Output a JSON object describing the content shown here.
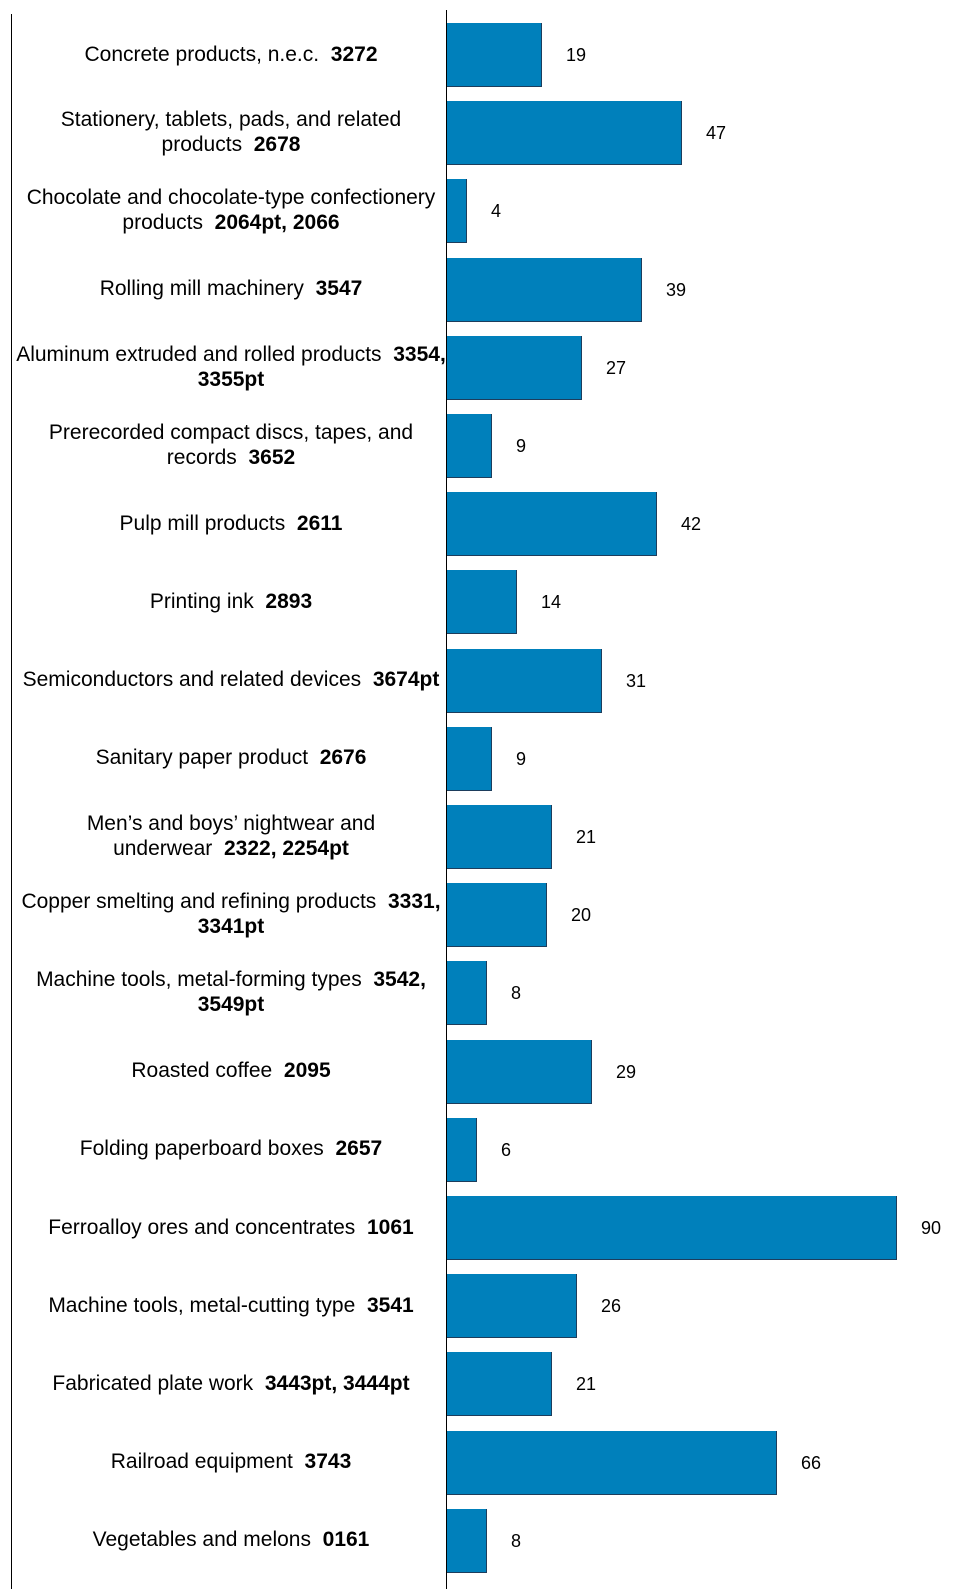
{
  "chart_data": {
    "type": "bar",
    "orientation": "horizontal",
    "title": "",
    "xlabel": "",
    "ylabel": "",
    "xlim": [
      0,
      90
    ],
    "grid": false,
    "bar_color": "#0080bb",
    "categories": [
      {
        "name": "Concrete products, n.e.c.",
        "code": "3272",
        "value": 19
      },
      {
        "name": "Stationery, tablets, pads, and related products",
        "code": "2678",
        "value": 47
      },
      {
        "name": "Chocolate and chocolate-type confectionery products",
        "code": "2064pt, 2066",
        "value": 4
      },
      {
        "name": "Rolling mill machinery",
        "code": "3547",
        "value": 39
      },
      {
        "name": "Aluminum extruded and rolled products",
        "code": "3354, 3355pt",
        "value": 27
      },
      {
        "name": "Prerecorded compact discs, tapes, and records",
        "code": "3652",
        "value": 9
      },
      {
        "name": "Pulp mill products",
        "code": "2611",
        "value": 42
      },
      {
        "name": "Printing ink",
        "code": "2893",
        "value": 14
      },
      {
        "name": "Semiconductors and related devices",
        "code": "3674pt",
        "value": 31
      },
      {
        "name": "Sanitary paper product",
        "code": "2676",
        "value": 9
      },
      {
        "name": "Men’s and boys’ nightwear and underwear",
        "code": "2322, 2254pt",
        "value": 21
      },
      {
        "name": "Copper smelting and refining products",
        "code": "3331, 3341pt",
        "value": 20
      },
      {
        "name": "Machine tools, metal-forming types",
        "code": "3542, 3549pt",
        "value": 8
      },
      {
        "name": "Roasted coffee",
        "code": "2095",
        "value": 29
      },
      {
        "name": "Folding paperboard boxes",
        "code": "2657",
        "value": 6
      },
      {
        "name": "Ferroalloy ores and concentrates",
        "code": "1061",
        "value": 90
      },
      {
        "name": "Machine tools, metal-cutting type",
        "code": "3541",
        "value": 26
      },
      {
        "name": "Fabricated plate work",
        "code": "3443pt, 3444pt",
        "value": 21
      },
      {
        "name": "Railroad equipment",
        "code": "3743",
        "value": 66
      },
      {
        "name": "Vegetables and melons",
        "code": "0161",
        "value": 8
      }
    ]
  }
}
